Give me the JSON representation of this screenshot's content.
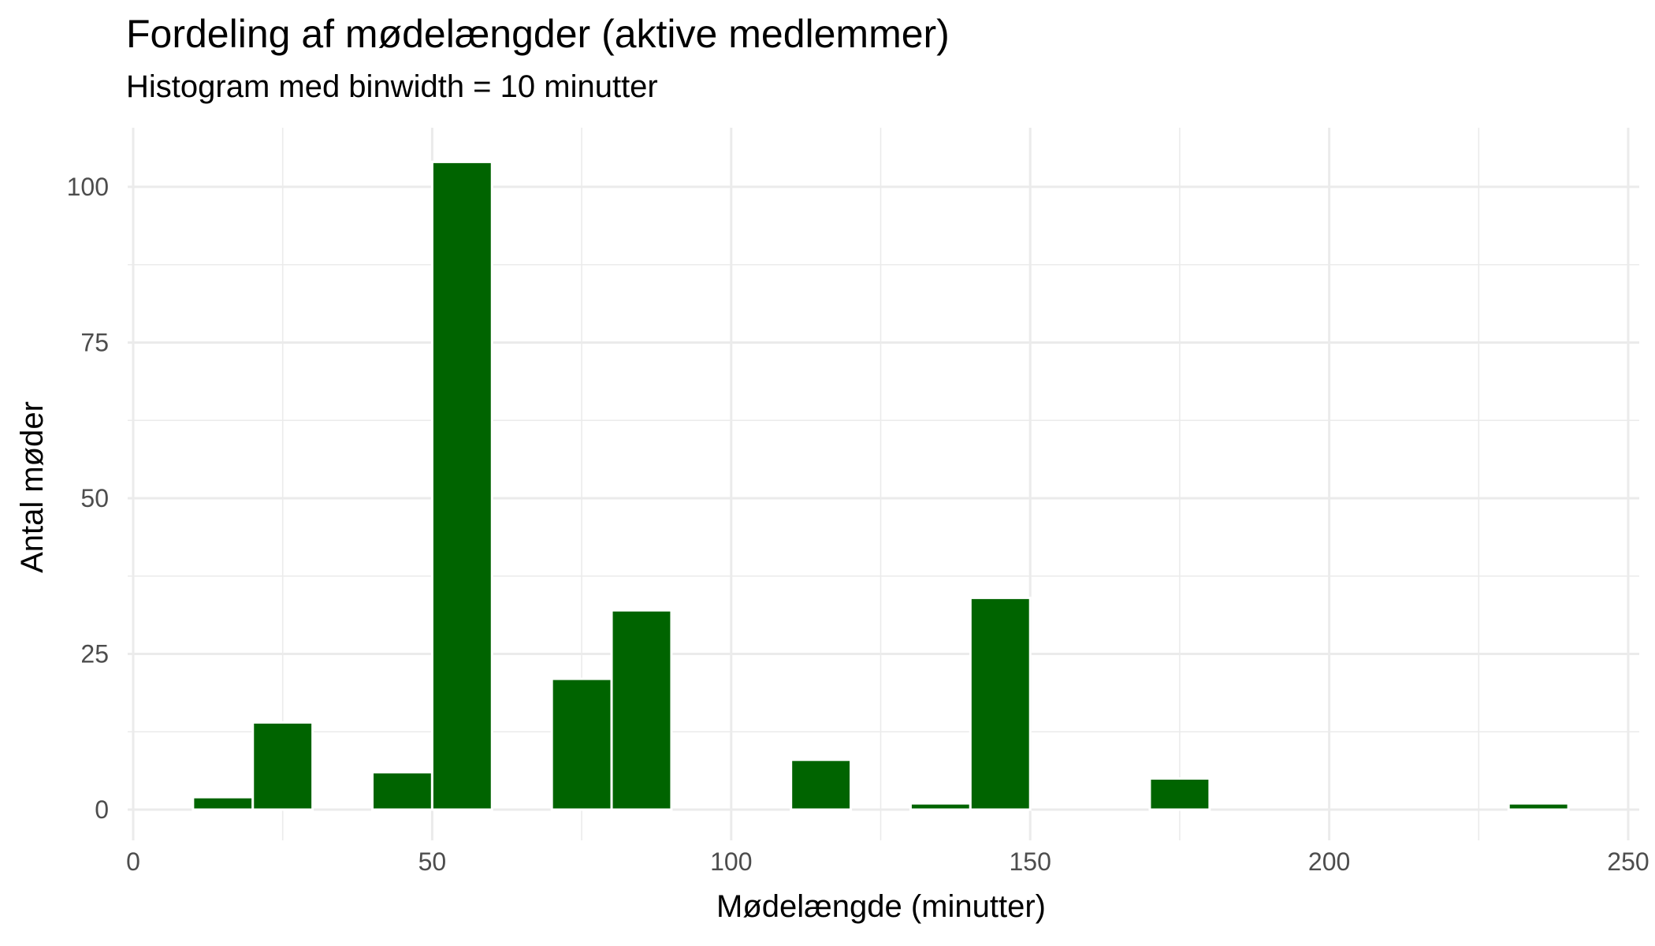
{
  "chart_data": {
    "type": "bar",
    "title": "Fordeling af mødelængder (aktive medlemmer)",
    "subtitle": "Histogram med binwidth = 10 minutter",
    "xlabel": "Mødelængde (minutter)",
    "ylabel": "Antal møder",
    "binwidth": 10,
    "xlim": [
      0,
      250
    ],
    "ylim": [
      0,
      108
    ],
    "x_ticks": [
      0,
      50,
      100,
      150,
      200,
      250
    ],
    "y_ticks": [
      0,
      25,
      50,
      75,
      100
    ],
    "grid": true,
    "bar_color": "#006400",
    "bins": [
      {
        "start": 10,
        "end": 20,
        "count": 2
      },
      {
        "start": 20,
        "end": 30,
        "count": 14
      },
      {
        "start": 40,
        "end": 50,
        "count": 6
      },
      {
        "start": 50,
        "end": 60,
        "count": 104
      },
      {
        "start": 70,
        "end": 80,
        "count": 21
      },
      {
        "start": 80,
        "end": 90,
        "count": 32
      },
      {
        "start": 110,
        "end": 120,
        "count": 8
      },
      {
        "start": 130,
        "end": 140,
        "count": 1
      },
      {
        "start": 140,
        "end": 150,
        "count": 34
      },
      {
        "start": 170,
        "end": 180,
        "count": 5
      },
      {
        "start": 230,
        "end": 240,
        "count": 1
      }
    ]
  }
}
